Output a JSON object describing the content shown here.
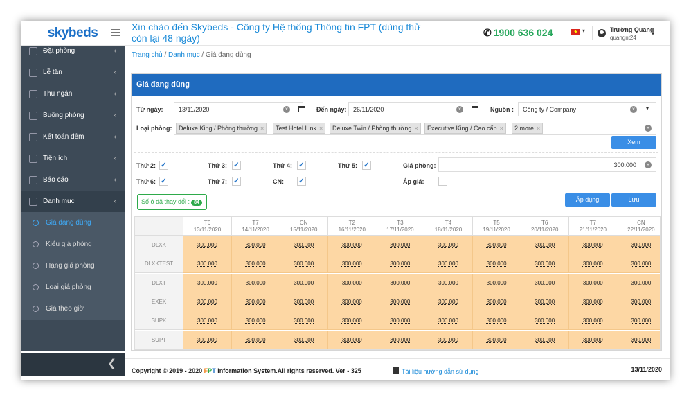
{
  "brand": {
    "logo": "skybeds"
  },
  "header": {
    "welcome": "Xin chào đến Skybeds - Công ty Hệ thống Thông tin FPT (dùng thử còn lại 48 ngày)",
    "phone": "1900 636 024",
    "user_name": "Trường Quang",
    "user_id": "quangnt24",
    "flag_color": "#da251d"
  },
  "sidebar": {
    "items": [
      {
        "label": "Đặt phòng",
        "icon": "calendar-icon"
      },
      {
        "label": "Lễ tân",
        "icon": "calendar-check-icon"
      },
      {
        "label": "Thu ngân",
        "icon": "money-icon"
      },
      {
        "label": "Buồng phòng",
        "icon": "broom-icon"
      },
      {
        "label": "Kết toán đêm",
        "icon": "moon-icon"
      },
      {
        "label": "Tiện ích",
        "icon": "gear-icon"
      },
      {
        "label": "Báo cáo",
        "icon": "file-icon"
      },
      {
        "label": "Danh mục",
        "icon": "cogs-icon"
      }
    ],
    "subitems": [
      {
        "label": "Giá đang dùng"
      },
      {
        "label": "Kiểu giá phòng"
      },
      {
        "label": "Hạng giá phòng"
      },
      {
        "label": "Loại giá phòng"
      },
      {
        "label": "Giá theo giờ"
      }
    ],
    "collapse": "❮"
  },
  "breadcrumb": {
    "home": "Trang chủ",
    "category": "Danh mục",
    "current": "Giá đang dùng"
  },
  "panel": {
    "title": "Giá đang dùng",
    "from_label": "Từ ngày:",
    "from_value": "13/11/2020",
    "to_label": "Đến ngày:",
    "to_value": "26/11/2020",
    "source_label": "Nguồn :",
    "source_value": "Công ty / Company",
    "room_type_label": "Loại phòng:",
    "room_tags": [
      "Deluxe King / Phòng thường",
      "Test Hotel Link",
      "Deluxe Twin / Phòng thường",
      "Executive King / Cao cấp",
      "2 more"
    ],
    "view_button": "Xem",
    "days": [
      {
        "label": "Thứ 2:",
        "checked": true
      },
      {
        "label": "Thứ 3:",
        "checked": true
      },
      {
        "label": "Thứ 4:",
        "checked": true
      },
      {
        "label": "Thứ 5:",
        "checked": true
      },
      {
        "label": "Thứ 6:",
        "checked": true
      },
      {
        "label": "Thứ 7:",
        "checked": true
      },
      {
        "label": "CN:",
        "checked": true
      }
    ],
    "price_label": "Giá phòng:",
    "price_value": "300.000",
    "apply_price_label": "Áp giá:",
    "changed_label": "Số ô đã thay đổi :",
    "changed_count": "84",
    "apply_button": "Áp dụng",
    "save_button": "Lưu"
  },
  "grid": {
    "columns": [
      {
        "day": "T6",
        "date": "13/11/2020"
      },
      {
        "day": "T7",
        "date": "14/11/2020"
      },
      {
        "day": "CN",
        "date": "15/11/2020"
      },
      {
        "day": "T2",
        "date": "16/11/2020"
      },
      {
        "day": "T3",
        "date": "17/11/2020"
      },
      {
        "day": "T4",
        "date": "18/11/2020"
      },
      {
        "day": "T5",
        "date": "19/11/2020"
      },
      {
        "day": "T6",
        "date": "20/11/2020"
      },
      {
        "day": "T7",
        "date": "21/11/2020"
      },
      {
        "day": "CN",
        "date": "22/11/2020"
      }
    ],
    "rows": [
      "DLXK",
      "DLXKTEST",
      "DLXT",
      "EXEK",
      "SUPK",
      "SUPT"
    ],
    "cell_value": "300.000",
    "cell_color": "#fdd7a4"
  },
  "footer": {
    "copy_pre": "Copyright © 2019 - 2020 ",
    "fpt_f": "F",
    "fpt_p": "P",
    "fpt_t": "T",
    "copy_post": " Information System.All rights reserved.  Ver - 325",
    "doc_link": "Tài liệu hướng dẫn sử dụng",
    "date": "13/11/2020"
  }
}
